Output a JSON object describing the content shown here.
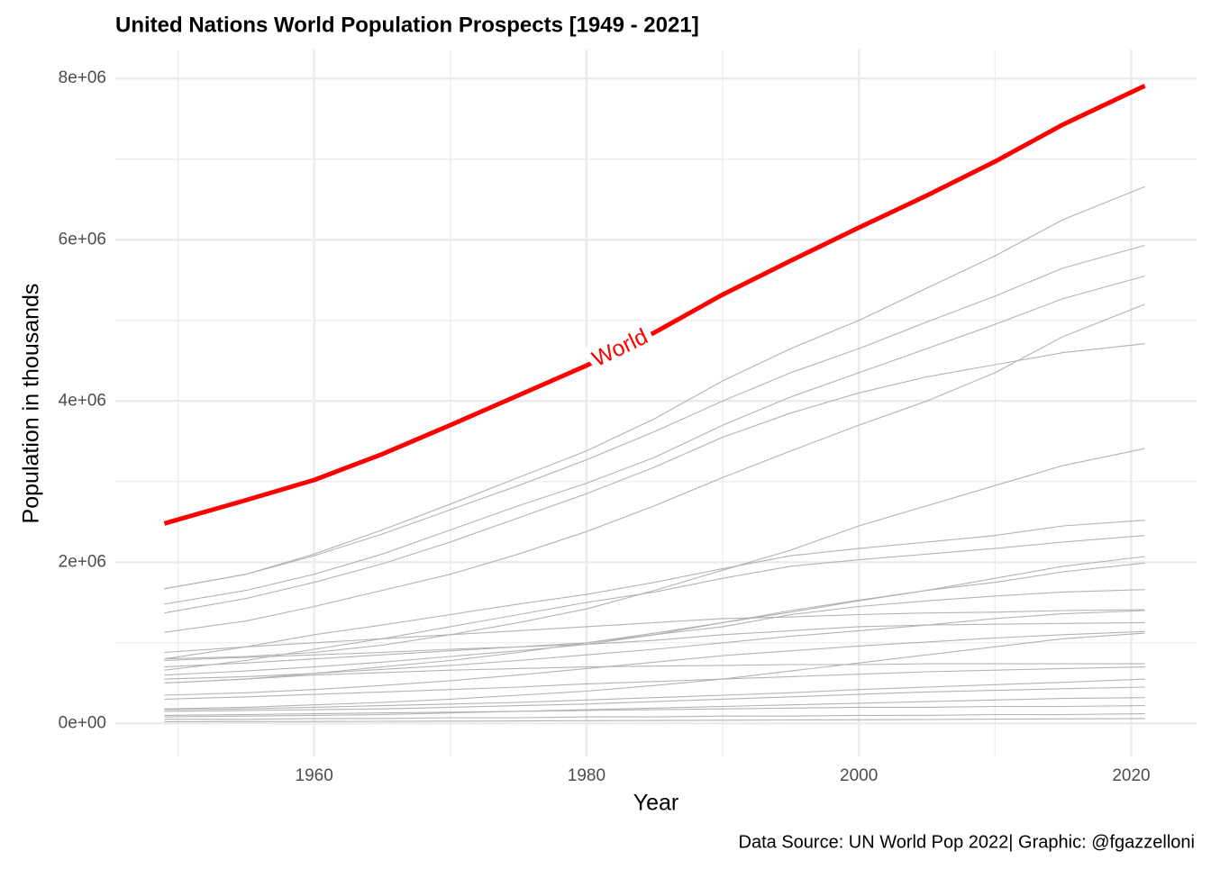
{
  "chart_data": {
    "type": "line",
    "title": "United Nations World Population Prospects [1949 - 2021]",
    "xlabel": "Year",
    "ylabel": "Population in thousands",
    "caption": "Data Source: UN World Pop 2022| Graphic: @fgazzelloni",
    "x": [
      1949,
      1955,
      1960,
      1965,
      1970,
      1975,
      1980,
      1985,
      1990,
      1995,
      2000,
      2005,
      2010,
      2015,
      2021
    ],
    "xlim": [
      1945.4,
      2024.8
    ],
    "xticks": [
      1960,
      1980,
      2000,
      2020
    ],
    "ylim": [
      -410000,
      8360000
    ],
    "yticks": [
      {
        "value": 0,
        "label": "0e+00"
      },
      {
        "value": 2000000,
        "label": "2e+06"
      },
      {
        "value": 4000000,
        "label": "4e+06"
      },
      {
        "value": 6000000,
        "label": "6e+06"
      },
      {
        "value": 8000000,
        "label": "8e+06"
      }
    ],
    "grid": true,
    "series": [
      {
        "name": "World",
        "color": "#ff0000",
        "values": [
          2480000,
          2770000,
          3020000,
          3340000,
          3700000,
          4070000,
          4440000,
          4850000,
          5320000,
          5740000,
          6150000,
          6550000,
          6970000,
          7430000,
          7910000
        ]
      },
      {
        "color": "#b3b3b3",
        "values": [
          1670000,
          1850000,
          2100000,
          2400000,
          2720000,
          3050000,
          3380000,
          3780000,
          4250000,
          4650000,
          5000000,
          5400000,
          5800000,
          6250000,
          6660000
        ]
      },
      {
        "color": "#b3b3b3",
        "values": [
          1670000,
          1850000,
          2080000,
          2350000,
          2650000,
          2950000,
          3270000,
          3620000,
          4000000,
          4350000,
          4650000,
          4980000,
          5300000,
          5650000,
          5930000
        ]
      },
      {
        "color": "#b3b3b3",
        "values": [
          1480000,
          1650000,
          1850000,
          2100000,
          2400000,
          2700000,
          2980000,
          3300000,
          3700000,
          4050000,
          4350000,
          4650000,
          4950000,
          5270000,
          5550000
        ]
      },
      {
        "color": "#b3b3b3",
        "values": [
          1130000,
          1270000,
          1450000,
          1650000,
          1850000,
          2100000,
          2380000,
          2700000,
          3050000,
          3380000,
          3700000,
          4000000,
          4350000,
          4800000,
          5200000
        ]
      },
      {
        "color": "#b3b3b3",
        "values": [
          1370000,
          1550000,
          1750000,
          1980000,
          2250000,
          2550000,
          2850000,
          3180000,
          3550000,
          3850000,
          4100000,
          4300000,
          4450000,
          4600000,
          4710000
        ]
      },
      {
        "color": "#b3b3b3",
        "values": [
          800000,
          830000,
          880000,
          970000,
          1100000,
          1250000,
          1420000,
          1650000,
          1900000,
          2150000,
          2450000,
          2700000,
          2950000,
          3200000,
          3410000
        ]
      },
      {
        "color": "#b3b3b3",
        "values": [
          800000,
          950000,
          1100000,
          1220000,
          1350000,
          1480000,
          1600000,
          1750000,
          1920000,
          2080000,
          2170000,
          2250000,
          2330000,
          2450000,
          2520000
        ]
      },
      {
        "color": "#b3b3b3",
        "values": [
          660000,
          780000,
          920000,
          1050000,
          1200000,
          1350000,
          1500000,
          1630000,
          1800000,
          1950000,
          2030000,
          2100000,
          2170000,
          2250000,
          2330000
        ]
      },
      {
        "color": "#b3b3b3",
        "values": [
          500000,
          550000,
          620000,
          700000,
          780000,
          880000,
          1000000,
          1120000,
          1250000,
          1380000,
          1520000,
          1650000,
          1800000,
          1950000,
          2070000
        ]
      },
      {
        "color": "#b3b3b3",
        "values": [
          600000,
          650000,
          700000,
          760000,
          830000,
          900000,
          980000,
          1100000,
          1250000,
          1400000,
          1530000,
          1650000,
          1750000,
          1880000,
          1990000
        ]
      },
      {
        "color": "#b3b3b3",
        "values": [
          700000,
          750000,
          800000,
          850000,
          900000,
          950000,
          1000000,
          1100000,
          1200000,
          1350000,
          1450000,
          1520000,
          1580000,
          1630000,
          1660000
        ]
      },
      {
        "color": "#b3b3b3",
        "values": [
          880000,
          950000,
          1000000,
          1050000,
          1100000,
          1150000,
          1200000,
          1250000,
          1300000,
          1320000,
          1350000,
          1370000,
          1380000,
          1400000,
          1410000
        ]
      },
      {
        "color": "#b3b3b3",
        "values": [
          550000,
          580000,
          620000,
          670000,
          720000,
          780000,
          850000,
          920000,
          1000000,
          1080000,
          1150000,
          1220000,
          1300000,
          1360000,
          1400000
        ]
      },
      {
        "color": "#b3b3b3",
        "values": [
          780000,
          820000,
          850000,
          880000,
          920000,
          950000,
          980000,
          1030000,
          1100000,
          1150000,
          1200000,
          1220000,
          1230000,
          1240000,
          1250000
        ]
      },
      {
        "color": "#b3b3b3",
        "values": [
          350000,
          380000,
          420000,
          470000,
          530000,
          600000,
          680000,
          760000,
          840000,
          900000,
          960000,
          1010000,
          1060000,
          1100000,
          1140000
        ]
      },
      {
        "color": "#b3b3b3",
        "values": [
          180000,
          200000,
          230000,
          260000,
          300000,
          350000,
          400000,
          470000,
          550000,
          650000,
          750000,
          850000,
          950000,
          1050000,
          1120000
        ]
      },
      {
        "color": "#b3b3b3",
        "values": [
          500000,
          550000,
          600000,
          630000,
          660000,
          680000,
          700000,
          710000,
          720000,
          730000,
          730000,
          740000,
          740000,
          740000,
          740000
        ]
      },
      {
        "color": "#b3b3b3",
        "values": [
          300000,
          330000,
          360000,
          390000,
          420000,
          450000,
          490000,
          520000,
          550000,
          580000,
          610000,
          640000,
          660000,
          680000,
          700000
        ]
      },
      {
        "color": "#b3b3b3",
        "values": [
          170000,
          180000,
          200000,
          220000,
          240000,
          260000,
          290000,
          320000,
          350000,
          380000,
          420000,
          450000,
          480000,
          510000,
          550000
        ]
      },
      {
        "color": "#b3b3b3",
        "values": [
          150000,
          160000,
          170000,
          180000,
          200000,
          220000,
          240000,
          270000,
          300000,
          330000,
          360000,
          390000,
          410000,
          430000,
          450000
        ]
      },
      {
        "color": "#b3b3b3",
        "values": [
          80000,
          90000,
          100000,
          110000,
          130000,
          150000,
          170000,
          190000,
          210000,
          230000,
          250000,
          270000,
          290000,
          310000,
          320000
        ]
      },
      {
        "color": "#b3b3b3",
        "values": [
          100000,
          110000,
          120000,
          130000,
          140000,
          150000,
          160000,
          170000,
          180000,
          190000,
          200000,
          200000,
          210000,
          210000,
          220000
        ]
      },
      {
        "color": "#b3b3b3",
        "values": [
          50000,
          50000,
          60000,
          60000,
          70000,
          70000,
          80000,
          80000,
          90000,
          90000,
          100000,
          100000,
          110000,
          110000,
          120000
        ]
      },
      {
        "color": "#b3b3b3",
        "values": [
          20000,
          22000,
          24000,
          26000,
          28000,
          30000,
          33000,
          36000,
          39000,
          42000,
          45000,
          48000,
          52000,
          56000,
          60000
        ]
      }
    ]
  }
}
